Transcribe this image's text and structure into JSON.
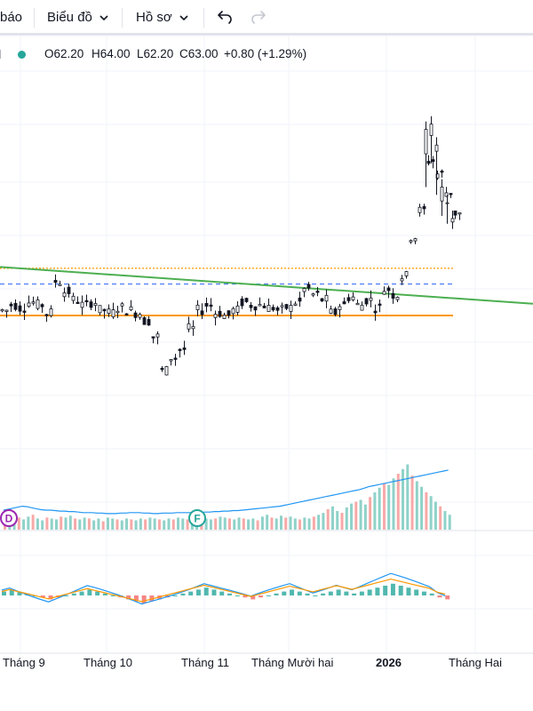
{
  "toolbar": {
    "indicators_label": "báo",
    "chart_label": "Biểu đồ",
    "profile_label": "Hồ sơ",
    "undo_icon": "undo-icon",
    "redo_icon": "redo-icon",
    "chevron_icon": "chevron-down-icon"
  },
  "legend": {
    "status_dot_color": "#26a69a",
    "open": "O62.20",
    "high": "H64.00",
    "low": "L62.20",
    "close": "C63.00",
    "change": "+0.80 (+1.29%)"
  },
  "colors": {
    "up": "#26a69a",
    "down": "#ef5350",
    "candle_body": "#131722",
    "trendline": "#4caf50",
    "support": "#ff9800",
    "ma": "#2196f3",
    "signal": "#ff9800",
    "dashed_level": "#2962ff"
  },
  "x_axis": {
    "labels": [
      "Tháng 9",
      "Tháng 10",
      "Tháng 11",
      "Tháng Mười hai",
      "2026",
      "Tháng Hai"
    ],
    "bold": [
      false,
      false,
      false,
      false,
      true,
      false
    ]
  },
  "markers": [
    {
      "letter": "D",
      "color": "#9c27b0"
    },
    {
      "letter": "F",
      "color": "#26a69a"
    }
  ],
  "chart_data": {
    "type": "candlestick",
    "title": "",
    "last_bar": {
      "open": 62.2,
      "high": 64.0,
      "low": 62.2,
      "close": 63.0,
      "change": 0.8,
      "change_pct": 1.29
    },
    "price_points": [
      {
        "x": 0,
        "y": 56.8
      },
      {
        "x": 10,
        "y": 57.0
      },
      {
        "x": 20,
        "y": 56.9
      },
      {
        "x": 30,
        "y": 57.1
      },
      {
        "x": 40,
        "y": 57.0
      },
      {
        "x": 50,
        "y": 56.7
      },
      {
        "x": 60,
        "y": 57.9
      },
      {
        "x": 70,
        "y": 57.5
      },
      {
        "x": 80,
        "y": 57.2
      },
      {
        "x": 90,
        "y": 57.0
      },
      {
        "x": 100,
        "y": 57.1
      },
      {
        "x": 110,
        "y": 56.8
      },
      {
        "x": 120,
        "y": 56.7
      },
      {
        "x": 130,
        "y": 56.9
      },
      {
        "x": 140,
        "y": 56.8
      },
      {
        "x": 150,
        "y": 56.7
      },
      {
        "x": 160,
        "y": 56.4
      },
      {
        "x": 170,
        "y": 55.8
      },
      {
        "x": 180,
        "y": 54.5
      },
      {
        "x": 190,
        "y": 55.0
      },
      {
        "x": 200,
        "y": 55.3
      },
      {
        "x": 210,
        "y": 56.1
      },
      {
        "x": 220,
        "y": 56.8
      },
      {
        "x": 230,
        "y": 57.0
      },
      {
        "x": 240,
        "y": 56.7
      },
      {
        "x": 250,
        "y": 56.6
      },
      {
        "x": 260,
        "y": 56.8
      },
      {
        "x": 270,
        "y": 57.1
      },
      {
        "x": 280,
        "y": 57.0
      },
      {
        "x": 290,
        "y": 57.0
      },
      {
        "x": 300,
        "y": 56.9
      },
      {
        "x": 310,
        "y": 56.8
      },
      {
        "x": 320,
        "y": 56.9
      },
      {
        "x": 330,
        "y": 57.1
      },
      {
        "x": 340,
        "y": 57.6
      },
      {
        "x": 350,
        "y": 57.4
      },
      {
        "x": 360,
        "y": 57.2
      },
      {
        "x": 370,
        "y": 56.7
      },
      {
        "x": 380,
        "y": 57.0
      },
      {
        "x": 390,
        "y": 57.3
      },
      {
        "x": 400,
        "y": 57.0
      },
      {
        "x": 410,
        "y": 57.2
      },
      {
        "x": 420,
        "y": 56.9
      },
      {
        "x": 430,
        "y": 57.6
      },
      {
        "x": 440,
        "y": 57.4
      },
      {
        "x": 450,
        "y": 58.1
      },
      {
        "x": 460,
        "y": 59.6
      },
      {
        "x": 470,
        "y": 60.6
      },
      {
        "x": 480,
        "y": 62.5
      },
      {
        "x": 490,
        "y": 62.0
      },
      {
        "x": 500,
        "y": 61.3
      },
      {
        "x": 510,
        "y": 60.5
      }
    ],
    "volume": [
      14,
      12,
      15,
      13,
      11,
      14,
      16,
      12,
      10,
      13,
      12,
      11,
      14,
      13,
      15,
      12,
      11,
      13,
      12,
      10,
      12,
      9,
      13,
      12,
      11,
      10,
      12,
      11,
      10,
      12,
      11,
      13,
      12,
      11,
      10,
      12,
      11,
      13,
      12,
      11,
      12,
      10,
      13,
      12,
      11,
      12,
      14,
      13,
      12,
      11,
      13,
      12,
      11,
      12,
      10,
      14,
      16,
      13,
      12,
      15,
      13,
      14,
      12,
      11,
      13,
      12,
      14,
      16,
      18,
      22,
      25,
      20,
      18,
      24,
      28,
      30,
      32,
      27,
      35,
      40,
      45,
      50,
      48,
      55,
      60,
      65,
      70,
      58,
      52,
      46,
      40,
      36,
      30,
      25,
      20,
      16
    ],
    "volume_ma": [
      40,
      42,
      44,
      46,
      48,
      47,
      45,
      43,
      41,
      40,
      40,
      39,
      38,
      38,
      37,
      37,
      36,
      35,
      35,
      35,
      34,
      34,
      33,
      33,
      33,
      34,
      34,
      35,
      35,
      35,
      34,
      34,
      33,
      33,
      34,
      34,
      34,
      35,
      35,
      35,
      35,
      35,
      35,
      36,
      36,
      37,
      37,
      38,
      38,
      39,
      39,
      40,
      41,
      42,
      43,
      44,
      45,
      46,
      47,
      48,
      50,
      52,
      54,
      56,
      58,
      60,
      62,
      64,
      66,
      68,
      70,
      72,
      74,
      76,
      78,
      80,
      82,
      85,
      88,
      90,
      92,
      94,
      96,
      98,
      100,
      102,
      104,
      106,
      108,
      110,
      112,
      114,
      116,
      118,
      120,
      122
    ],
    "macd_hist": [
      2,
      3,
      2,
      1,
      0,
      -1,
      -2,
      -1,
      0,
      1,
      2,
      3,
      2,
      1,
      0,
      -1,
      -2,
      -3,
      -4,
      -3,
      -2,
      -1,
      0,
      1,
      2,
      3,
      4,
      3,
      2,
      1,
      0,
      -1,
      -2,
      -1,
      0,
      1,
      2,
      3,
      2,
      1,
      0,
      1,
      2,
      3,
      2,
      1,
      2,
      3,
      4,
      5,
      6,
      5,
      4,
      3,
      2,
      1,
      -1,
      -2
    ],
    "legend_position": "top-left",
    "grid": true
  }
}
